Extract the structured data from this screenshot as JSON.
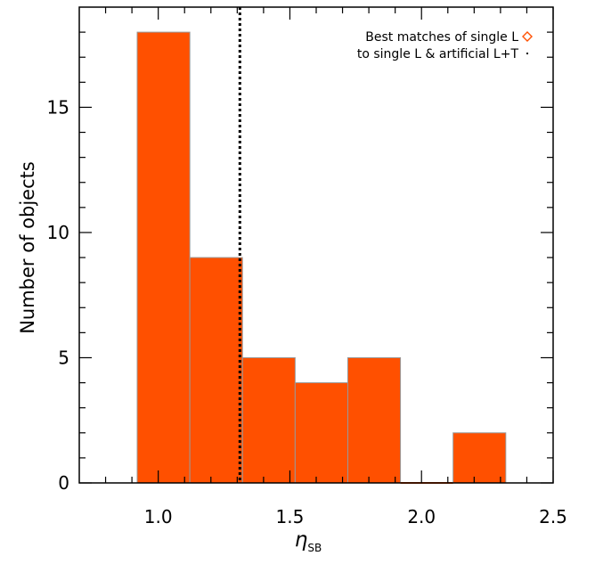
{
  "chart_data": {
    "type": "bar",
    "xlabel": "η",
    "xlabel_subscript": "SB",
    "ylabel": "Number of objects",
    "xlim": [
      0.7,
      2.5
    ],
    "ylim": [
      0,
      19
    ],
    "xticks": [
      1.0,
      1.5,
      2.0,
      2.5
    ],
    "xtick_labels": [
      "1.0",
      "1.5",
      "2.0",
      "2.5"
    ],
    "yticks": [
      0,
      5,
      10,
      15
    ],
    "ytick_labels": [
      "0",
      "5",
      "10",
      "15"
    ],
    "bins": [
      {
        "left": 0.92,
        "right": 1.12,
        "value": 18
      },
      {
        "left": 1.12,
        "right": 1.32,
        "value": 9
      },
      {
        "left": 1.32,
        "right": 1.52,
        "value": 5
      },
      {
        "left": 1.52,
        "right": 1.72,
        "value": 4
      },
      {
        "left": 1.72,
        "right": 1.92,
        "value": 5
      },
      {
        "left": 1.92,
        "right": 2.12,
        "value": 0
      },
      {
        "left": 2.12,
        "right": 2.32,
        "value": 2
      }
    ],
    "vline_x": 1.31,
    "legend": {
      "placement": "top-right",
      "lines": [
        "Best matches of single L",
        "to single L & artificial L+T"
      ]
    },
    "colors": {
      "bar_fill": "#ff5000",
      "bar_edge": "#999999",
      "axis": "#000000",
      "legend_marker": "#ff5000"
    },
    "grid": false
  }
}
